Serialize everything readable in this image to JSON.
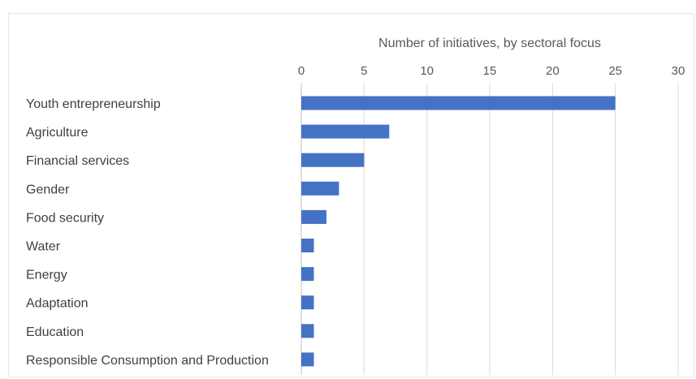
{
  "chart_data": {
    "type": "bar",
    "orientation": "horizontal",
    "title": "Number of initiatives, by sectoral focus",
    "x_axis_position": "top",
    "xlim": [
      0,
      30
    ],
    "xticks": [
      0,
      5,
      10,
      15,
      20,
      25,
      30
    ],
    "grid": "vertical",
    "legend": "none",
    "categories": [
      "Youth entrepreneurship",
      "Agriculture",
      "Financial services",
      "Gender",
      "Food security",
      "Water",
      "Energy",
      "Adaptation",
      "Education",
      "Responsible Consumption and Production"
    ],
    "values": [
      25,
      7,
      5,
      3,
      2,
      1,
      1,
      1,
      1,
      1
    ],
    "bar_color": "#4472C4",
    "grid_color": "#d9d9d9"
  }
}
